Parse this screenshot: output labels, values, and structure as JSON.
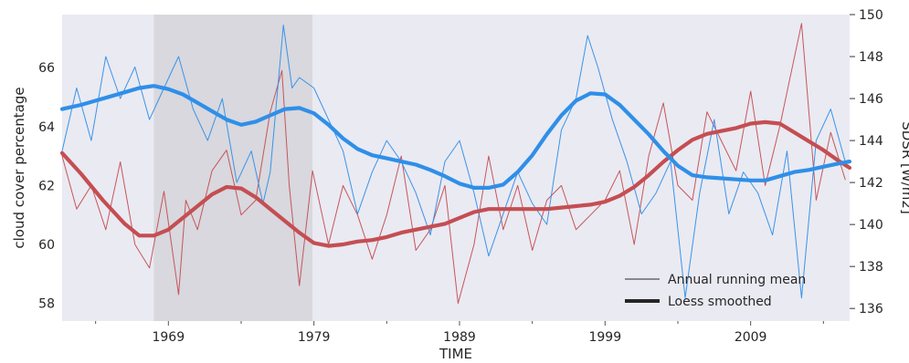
{
  "chart_data": {
    "type": "line",
    "title": "",
    "xlabel": "TIME",
    "ylabel_left": "cloud cover percentage",
    "ylabel_right": "SDSR [W/m2]",
    "xlim": [
      1961.7,
      2015.8
    ],
    "ylim_left": [
      57.4,
      67.8
    ],
    "ylim_right": [
      135.4,
      150.0
    ],
    "x_ticks": [
      1969,
      1979,
      1989,
      1999,
      2009
    ],
    "x_minor_ticks": [
      1964,
      1974,
      1984,
      1994,
      2004,
      2014
    ],
    "y_ticks_left": [
      58,
      60,
      62,
      64,
      66
    ],
    "y_ticks_right": [
      136,
      138,
      140,
      142,
      144,
      146,
      148,
      150
    ],
    "shaded_region": [
      1968.0,
      1978.9
    ],
    "grid": false,
    "legend_placement": "lower-right",
    "legend": [
      {
        "label": "Annual running mean",
        "style": "thin"
      },
      {
        "label": "Loess smoothed",
        "style": "thick"
      }
    ],
    "colors": {
      "cloud": "#c44e52",
      "sdsr": "#2f8fe8",
      "background": "#eaeaf2",
      "shade": "#d8d8de"
    },
    "series": [
      {
        "name": "",
        "axis": "left",
        "style": "thin",
        "x": [
          1961.7,
          1962.7,
          1963.7,
          1964.7,
          1965.7,
          1966.7,
          1967.7,
          1968.7,
          1969.7,
          1970.2,
          1971.0,
          1972.0,
          1973.0,
          1974.0,
          1975.0,
          1976.0,
          1976.8,
          1977.3,
          1978.0,
          1978.9,
          1980.0,
          1981.0,
          1982.0,
          1983.0,
          1984.0,
          1985.0,
          1986.0,
          1987.0,
          1988.0,
          1988.9,
          1990.0,
          1991.0,
          1992.0,
          1993.0,
          1994.0,
          1995.0,
          1996.0,
          1997.0,
          1998.0,
          1999.0,
          2000.0,
          2001.0,
          2002.0,
          2003.0,
          2004.0,
          2005.0,
          2006.0,
          2007.0,
          2008.0,
          2009.0,
          2010.0,
          2011.0,
          2012.5,
          2013.5,
          2014.5,
          2015.5
        ],
        "y": [
          63.0,
          61.2,
          62.0,
          60.5,
          62.8,
          60.0,
          59.2,
          61.8,
          58.3,
          61.5,
          60.5,
          62.5,
          63.2,
          61.0,
          61.5,
          64.5,
          65.9,
          62.0,
          58.6,
          62.5,
          60.0,
          62.0,
          61.0,
          59.5,
          61.0,
          63.0,
          59.8,
          60.5,
          62.0,
          58.0,
          60.0,
          63.0,
          60.5,
          62.0,
          59.8,
          61.5,
          62.0,
          60.5,
          61.0,
          61.5,
          62.5,
          60.0,
          63.0,
          64.8,
          62.0,
          61.5,
          64.5,
          63.5,
          62.5,
          65.2,
          62.0,
          64.0,
          67.5,
          61.5,
          63.8,
          62.2
        ]
      },
      {
        "name": "",
        "axis": "right",
        "style": "thin",
        "x": [
          1961.7,
          1962.7,
          1963.7,
          1964.7,
          1965.7,
          1966.7,
          1967.7,
          1968.7,
          1969.7,
          1970.7,
          1971.7,
          1972.7,
          1973.7,
          1974.7,
          1975.5,
          1976.0,
          1976.9,
          1977.5,
          1978.0,
          1979.0,
          1980.0,
          1981.0,
          1982.0,
          1983.0,
          1984.0,
          1985.0,
          1986.0,
          1987.0,
          1988.0,
          1989.0,
          1990.0,
          1991.0,
          1992.0,
          1993.0,
          1994.0,
          1995.0,
          1996.0,
          1997.0,
          1997.8,
          1998.5,
          1999.5,
          2000.5,
          2001.5,
          2002.5,
          2003.5,
          2004.5,
          2005.5,
          2006.5,
          2007.5,
          2008.5,
          2009.5,
          2010.5,
          2011.5,
          2012.5,
          2013.5,
          2014.5,
          2015.5
        ],
        "y": [
          143.5,
          146.5,
          144.0,
          148.0,
          146.0,
          147.5,
          145.0,
          146.5,
          148.0,
          145.5,
          144.0,
          146.0,
          142.0,
          143.5,
          141.0,
          142.5,
          149.5,
          146.5,
          147.0,
          146.5,
          145.0,
          143.5,
          140.5,
          142.5,
          144.0,
          143.0,
          141.5,
          139.5,
          143.0,
          144.0,
          141.5,
          138.5,
          140.5,
          142.5,
          141.0,
          140.0,
          144.5,
          146.0,
          149.0,
          147.5,
          145.0,
          143.0,
          140.5,
          141.5,
          143.0,
          136.5,
          141.5,
          145.0,
          140.5,
          142.5,
          141.5,
          139.5,
          143.5,
          136.5,
          144.0,
          145.5,
          143.0
        ]
      },
      {
        "name": "",
        "axis": "left",
        "style": "thick",
        "x": [
          1961.7,
          1963.0,
          1964.5,
          1966.0,
          1967.0,
          1968.0,
          1969.0,
          1970.0,
          1971.0,
          1972.0,
          1973.0,
          1974.0,
          1975.0,
          1976.0,
          1977.0,
          1978.0,
          1979.0,
          1980.0,
          1981.0,
          1982.0,
          1983.0,
          1984.0,
          1985.0,
          1986.0,
          1987.0,
          1988.0,
          1989.0,
          1990.0,
          1991.0,
          1992.0,
          1993.0,
          1994.0,
          1995.0,
          1996.0,
          1997.0,
          1998.0,
          1999.0,
          2000.0,
          2001.0,
          2002.0,
          2003.0,
          2004.0,
          2005.0,
          2006.0,
          2007.0,
          2008.0,
          2009.0,
          2010.0,
          2011.0,
          2012.0,
          2013.0,
          2014.0,
          2015.0,
          2015.8
        ],
        "y": [
          63.1,
          62.4,
          61.5,
          60.7,
          60.3,
          60.3,
          60.5,
          60.9,
          61.3,
          61.7,
          61.95,
          61.9,
          61.6,
          61.2,
          60.8,
          60.4,
          60.05,
          59.95,
          60.0,
          60.1,
          60.15,
          60.25,
          60.4,
          60.5,
          60.6,
          60.7,
          60.9,
          61.1,
          61.2,
          61.2,
          61.2,
          61.2,
          61.2,
          61.25,
          61.3,
          61.35,
          61.45,
          61.65,
          61.95,
          62.35,
          62.8,
          63.2,
          63.55,
          63.75,
          63.85,
          63.95,
          64.1,
          64.15,
          64.1,
          63.8,
          63.5,
          63.2,
          62.85,
          62.6
        ]
      },
      {
        "name": "",
        "axis": "right",
        "style": "thick",
        "x": [
          1961.7,
          1963.0,
          1964.0,
          1965.0,
          1966.0,
          1967.0,
          1968.0,
          1969.0,
          1970.0,
          1971.0,
          1972.0,
          1973.0,
          1974.0,
          1975.0,
          1976.0,
          1977.0,
          1978.0,
          1979.0,
          1980.0,
          1981.0,
          1982.0,
          1983.0,
          1984.0,
          1985.0,
          1986.0,
          1987.0,
          1988.0,
          1989.0,
          1990.0,
          1991.0,
          1992.0,
          1993.0,
          1994.0,
          1995.0,
          1996.0,
          1997.0,
          1998.0,
          1999.0,
          2000.0,
          2001.0,
          2002.0,
          2003.0,
          2004.0,
          2005.0,
          2006.0,
          2007.0,
          2008.0,
          2009.0,
          2010.0,
          2011.0,
          2012.0,
          2013.0,
          2014.0,
          2015.0,
          2015.8
        ],
        "y": [
          145.5,
          145.7,
          145.9,
          146.1,
          146.3,
          146.5,
          146.6,
          146.45,
          146.2,
          145.8,
          145.4,
          145.0,
          144.75,
          144.9,
          145.2,
          145.5,
          145.55,
          145.3,
          144.75,
          144.1,
          143.6,
          143.3,
          143.15,
          143.0,
          142.85,
          142.6,
          142.3,
          141.95,
          141.75,
          141.75,
          141.9,
          142.5,
          143.3,
          144.3,
          145.2,
          145.9,
          146.25,
          146.2,
          145.7,
          145.0,
          144.3,
          143.5,
          142.8,
          142.35,
          142.25,
          142.2,
          142.15,
          142.1,
          142.1,
          142.3,
          142.5,
          142.6,
          142.75,
          142.9,
          143.0
        ]
      }
    ]
  }
}
